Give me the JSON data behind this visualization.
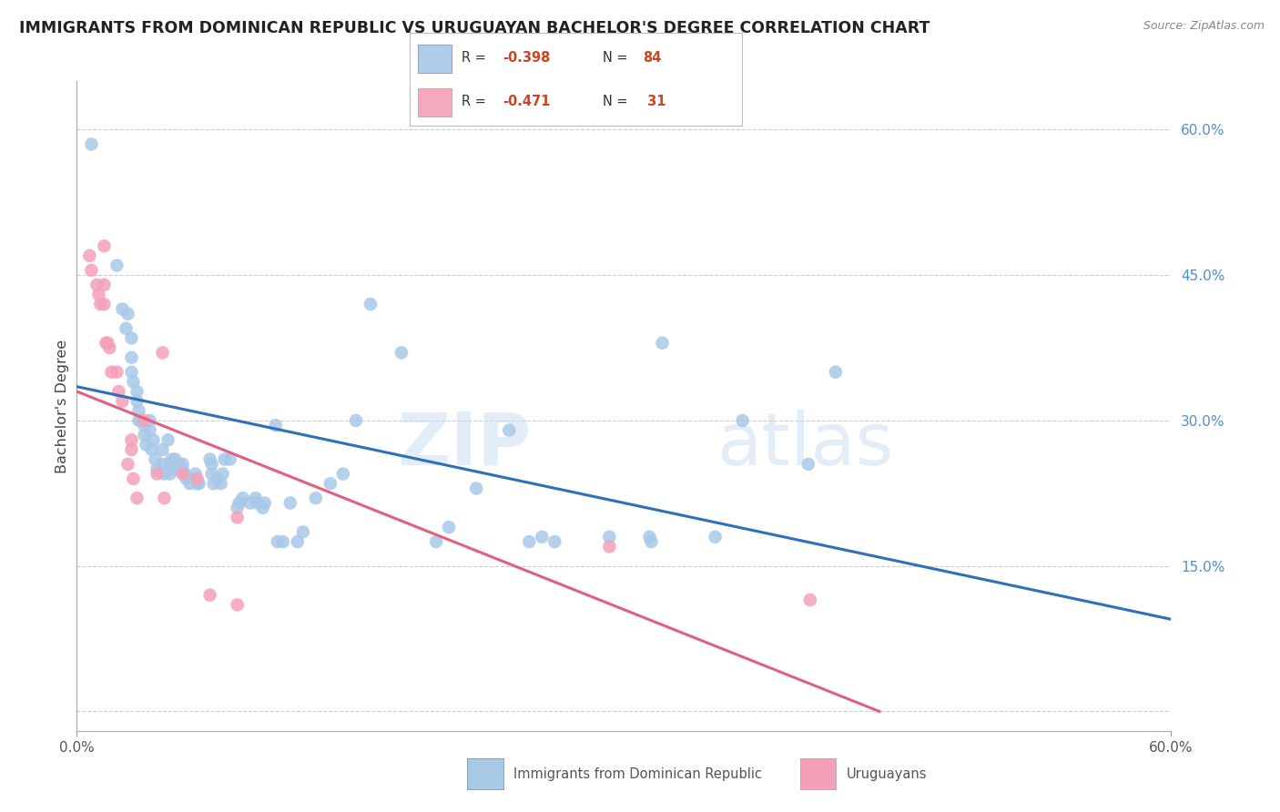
{
  "title": "IMMIGRANTS FROM DOMINICAN REPUBLIC VS URUGUAYAN BACHELOR'S DEGREE CORRELATION CHART",
  "source": "Source: ZipAtlas.com",
  "ylabel": "Bachelor's Degree",
  "xlim": [
    0.0,
    0.6
  ],
  "ylim": [
    -0.02,
    0.65
  ],
  "watermark_zip": "ZIP",
  "watermark_atlas": "atlas",
  "legend_blue_r": "-0.398",
  "legend_blue_n": "84",
  "legend_pink_r": "-0.471",
  "legend_pink_n": "31",
  "legend_label_blue": "Immigrants from Dominican Republic",
  "legend_label_pink": "Uruguayans",
  "blue_color": "#a8c8e8",
  "pink_color": "#f4a0b8",
  "blue_line_color": "#3070b8",
  "pink_line_color": "#e06080",
  "blue_scatter": [
    [
      0.008,
      0.585
    ],
    [
      0.022,
      0.46
    ],
    [
      0.025,
      0.415
    ],
    [
      0.027,
      0.395
    ],
    [
      0.028,
      0.41
    ],
    [
      0.03,
      0.385
    ],
    [
      0.03,
      0.365
    ],
    [
      0.03,
      0.35
    ],
    [
      0.031,
      0.34
    ],
    [
      0.033,
      0.33
    ],
    [
      0.033,
      0.32
    ],
    [
      0.034,
      0.31
    ],
    [
      0.034,
      0.3
    ],
    [
      0.035,
      0.3
    ],
    [
      0.037,
      0.295
    ],
    [
      0.037,
      0.285
    ],
    [
      0.038,
      0.275
    ],
    [
      0.04,
      0.3
    ],
    [
      0.04,
      0.29
    ],
    [
      0.041,
      0.27
    ],
    [
      0.042,
      0.28
    ],
    [
      0.043,
      0.26
    ],
    [
      0.044,
      0.25
    ],
    [
      0.047,
      0.27
    ],
    [
      0.047,
      0.255
    ],
    [
      0.048,
      0.245
    ],
    [
      0.05,
      0.28
    ],
    [
      0.051,
      0.255
    ],
    [
      0.051,
      0.245
    ],
    [
      0.052,
      0.26
    ],
    [
      0.054,
      0.26
    ],
    [
      0.055,
      0.25
    ],
    [
      0.056,
      0.255
    ],
    [
      0.058,
      0.255
    ],
    [
      0.058,
      0.25
    ],
    [
      0.059,
      0.245
    ],
    [
      0.06,
      0.24
    ],
    [
      0.062,
      0.235
    ],
    [
      0.064,
      0.24
    ],
    [
      0.065,
      0.245
    ],
    [
      0.066,
      0.235
    ],
    [
      0.067,
      0.235
    ],
    [
      0.073,
      0.26
    ],
    [
      0.074,
      0.255
    ],
    [
      0.074,
      0.245
    ],
    [
      0.075,
      0.235
    ],
    [
      0.077,
      0.24
    ],
    [
      0.079,
      0.235
    ],
    [
      0.08,
      0.245
    ],
    [
      0.081,
      0.26
    ],
    [
      0.084,
      0.26
    ],
    [
      0.088,
      0.21
    ],
    [
      0.089,
      0.215
    ],
    [
      0.091,
      0.22
    ],
    [
      0.095,
      0.215
    ],
    [
      0.098,
      0.22
    ],
    [
      0.099,
      0.215
    ],
    [
      0.102,
      0.21
    ],
    [
      0.103,
      0.215
    ],
    [
      0.109,
      0.295
    ],
    [
      0.11,
      0.175
    ],
    [
      0.113,
      0.175
    ],
    [
      0.117,
      0.215
    ],
    [
      0.121,
      0.175
    ],
    [
      0.124,
      0.185
    ],
    [
      0.131,
      0.22
    ],
    [
      0.139,
      0.235
    ],
    [
      0.146,
      0.245
    ],
    [
      0.153,
      0.3
    ],
    [
      0.161,
      0.42
    ],
    [
      0.178,
      0.37
    ],
    [
      0.197,
      0.175
    ],
    [
      0.204,
      0.19
    ],
    [
      0.219,
      0.23
    ],
    [
      0.237,
      0.29
    ],
    [
      0.248,
      0.175
    ],
    [
      0.255,
      0.18
    ],
    [
      0.262,
      0.175
    ],
    [
      0.292,
      0.18
    ],
    [
      0.314,
      0.18
    ],
    [
      0.315,
      0.175
    ],
    [
      0.321,
      0.38
    ],
    [
      0.35,
      0.18
    ],
    [
      0.365,
      0.3
    ],
    [
      0.401,
      0.255
    ],
    [
      0.416,
      0.35
    ]
  ],
  "pink_scatter": [
    [
      0.007,
      0.47
    ],
    [
      0.008,
      0.455
    ],
    [
      0.011,
      0.44
    ],
    [
      0.012,
      0.43
    ],
    [
      0.013,
      0.42
    ],
    [
      0.015,
      0.48
    ],
    [
      0.015,
      0.44
    ],
    [
      0.015,
      0.42
    ],
    [
      0.016,
      0.38
    ],
    [
      0.017,
      0.38
    ],
    [
      0.018,
      0.375
    ],
    [
      0.019,
      0.35
    ],
    [
      0.022,
      0.35
    ],
    [
      0.023,
      0.33
    ],
    [
      0.025,
      0.32
    ],
    [
      0.028,
      0.255
    ],
    [
      0.03,
      0.28
    ],
    [
      0.03,
      0.27
    ],
    [
      0.031,
      0.24
    ],
    [
      0.033,
      0.22
    ],
    [
      0.037,
      0.3
    ],
    [
      0.044,
      0.245
    ],
    [
      0.047,
      0.37
    ],
    [
      0.048,
      0.22
    ],
    [
      0.058,
      0.245
    ],
    [
      0.066,
      0.24
    ],
    [
      0.073,
      0.12
    ],
    [
      0.088,
      0.2
    ],
    [
      0.088,
      0.11
    ],
    [
      0.292,
      0.17
    ],
    [
      0.402,
      0.115
    ]
  ],
  "blue_line_x": [
    0.0,
    0.6
  ],
  "blue_line_y": [
    0.335,
    0.095
  ],
  "pink_line_x": [
    0.0,
    0.44
  ],
  "pink_line_y": [
    0.33,
    0.0
  ],
  "grid_color": "#cccccc",
  "background_color": "#ffffff",
  "title_color": "#222222",
  "right_axis_color": "#5090d0",
  "ytick_positions": [
    0.0,
    0.15,
    0.3,
    0.45,
    0.6
  ],
  "ytick_labels": [
    "",
    "15.0%",
    "30.0%",
    "45.0%",
    "60.0%"
  ]
}
